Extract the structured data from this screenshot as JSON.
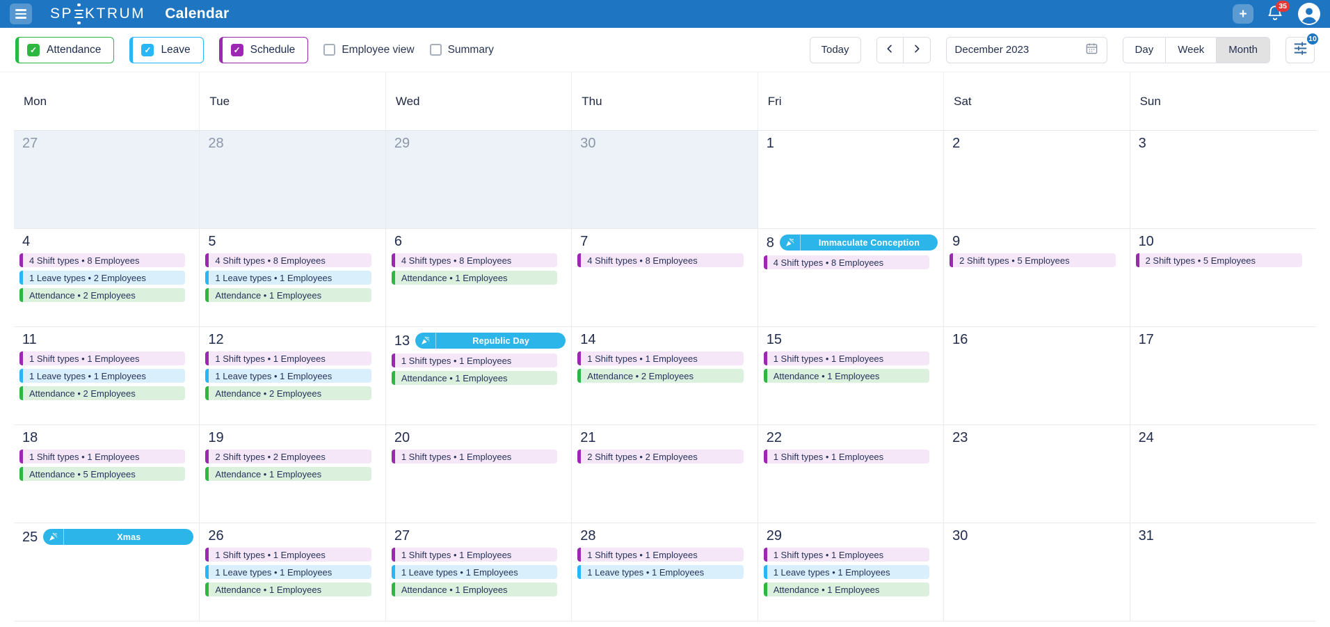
{
  "topbar": {
    "brand_prefix": "SP",
    "brand_suffix": "KTRUM",
    "title": "Calendar",
    "notification_count": "35"
  },
  "toolbar": {
    "filters": [
      {
        "label": "Attendance",
        "type": "attendance",
        "checked": true
      },
      {
        "label": "Leave",
        "type": "leave",
        "checked": true
      },
      {
        "label": "Schedule",
        "type": "schedule",
        "checked": true
      }
    ],
    "employee_view_label": "Employee view",
    "employee_view_checked": false,
    "summary_label": "Summary",
    "summary_checked": false,
    "today_label": "Today",
    "period": "December 2023",
    "views": [
      "Day",
      "Week",
      "Month"
    ],
    "active_view": "Month",
    "filter_badge": "10"
  },
  "colors": {
    "topbar_blue": "#1e75c1",
    "attendance_green": "#2db742",
    "leave_blue": "#29b6f6",
    "schedule_purple": "#9c27b0",
    "holiday_cyan": "#2cb5e8",
    "notification_red": "#e53935"
  },
  "calendar": {
    "weekdays": [
      "Mon",
      "Tue",
      "Wed",
      "Thu",
      "Fri",
      "Sat",
      "Sun"
    ],
    "weeks": [
      [
        {
          "day": "27",
          "other": true,
          "events": []
        },
        {
          "day": "28",
          "other": true,
          "events": []
        },
        {
          "day": "29",
          "other": true,
          "events": []
        },
        {
          "day": "30",
          "other": true,
          "events": []
        },
        {
          "day": "1",
          "events": []
        },
        {
          "day": "2",
          "events": []
        },
        {
          "day": "3",
          "events": []
        }
      ],
      [
        {
          "day": "4",
          "events": [
            {
              "type": "shift",
              "label": "4 Shift types • 8 Employees"
            },
            {
              "type": "leave",
              "label": "1 Leave types • 2 Employees"
            },
            {
              "type": "attendance",
              "label": "Attendance • 2 Employees"
            }
          ]
        },
        {
          "day": "5",
          "events": [
            {
              "type": "shift",
              "label": "4 Shift types • 8 Employees"
            },
            {
              "type": "leave",
              "label": "1 Leave types • 1 Employees"
            },
            {
              "type": "attendance",
              "label": "Attendance • 1 Employees"
            }
          ]
        },
        {
          "day": "6",
          "events": [
            {
              "type": "shift",
              "label": "4 Shift types • 8 Employees"
            },
            {
              "type": "attendance",
              "label": "Attendance • 1 Employees"
            }
          ]
        },
        {
          "day": "7",
          "events": [
            {
              "type": "shift",
              "label": "4 Shift types • 8 Employees"
            }
          ]
        },
        {
          "day": "8",
          "holiday": "Immaculate Conception",
          "events": [
            {
              "type": "shift",
              "label": "4 Shift types • 8 Employees"
            }
          ]
        },
        {
          "day": "9",
          "events": [
            {
              "type": "shift",
              "label": "2 Shift types • 5 Employees"
            }
          ]
        },
        {
          "day": "10",
          "events": [
            {
              "type": "shift",
              "label": "2 Shift types • 5 Employees"
            }
          ]
        }
      ],
      [
        {
          "day": "11",
          "events": [
            {
              "type": "shift",
              "label": "1 Shift types • 1 Employees"
            },
            {
              "type": "leave",
              "label": "1 Leave types • 1 Employees"
            },
            {
              "type": "attendance",
              "label": "Attendance • 2 Employees"
            }
          ]
        },
        {
          "day": "12",
          "events": [
            {
              "type": "shift",
              "label": "1 Shift types • 1 Employees"
            },
            {
              "type": "leave",
              "label": "1 Leave types • 1 Employees"
            },
            {
              "type": "attendance",
              "label": "Attendance • 2 Employees"
            }
          ]
        },
        {
          "day": "13",
          "holiday": "Republic Day",
          "events": [
            {
              "type": "shift",
              "label": "1 Shift types • 1 Employees"
            },
            {
              "type": "attendance",
              "label": "Attendance • 1 Employees"
            }
          ]
        },
        {
          "day": "14",
          "events": [
            {
              "type": "shift",
              "label": "1 Shift types • 1 Employees"
            },
            {
              "type": "attendance",
              "label": "Attendance • 2 Employees"
            }
          ]
        },
        {
          "day": "15",
          "events": [
            {
              "type": "shift",
              "label": "1 Shift types • 1 Employees"
            },
            {
              "type": "attendance",
              "label": "Attendance • 1 Employees"
            }
          ]
        },
        {
          "day": "16",
          "events": []
        },
        {
          "day": "17",
          "events": []
        }
      ],
      [
        {
          "day": "18",
          "events": [
            {
              "type": "shift",
              "label": "1 Shift types • 1 Employees"
            },
            {
              "type": "attendance",
              "label": "Attendance • 5 Employees"
            }
          ]
        },
        {
          "day": "19",
          "events": [
            {
              "type": "shift",
              "label": "2 Shift types • 2 Employees"
            },
            {
              "type": "attendance",
              "label": "Attendance • 1 Employees"
            }
          ]
        },
        {
          "day": "20",
          "events": [
            {
              "type": "shift",
              "label": "1 Shift types • 1 Employees"
            }
          ]
        },
        {
          "day": "21",
          "events": [
            {
              "type": "shift",
              "label": "2 Shift types • 2 Employees"
            }
          ]
        },
        {
          "day": "22",
          "events": [
            {
              "type": "shift",
              "label": "1 Shift types • 1 Employees"
            }
          ]
        },
        {
          "day": "23",
          "events": []
        },
        {
          "day": "24",
          "events": []
        }
      ],
      [
        {
          "day": "25",
          "holiday": "Xmas",
          "events": []
        },
        {
          "day": "26",
          "events": [
            {
              "type": "shift",
              "label": "1 Shift types • 1 Employees"
            },
            {
              "type": "leave",
              "label": "1 Leave types • 1 Employees"
            },
            {
              "type": "attendance",
              "label": "Attendance • 1 Employees"
            }
          ]
        },
        {
          "day": "27",
          "events": [
            {
              "type": "shift",
              "label": "1 Shift types • 1 Employees"
            },
            {
              "type": "leave",
              "label": "1 Leave types • 1 Employees"
            },
            {
              "type": "attendance",
              "label": "Attendance • 1 Employees"
            }
          ]
        },
        {
          "day": "28",
          "events": [
            {
              "type": "shift",
              "label": "1 Shift types • 1 Employees"
            },
            {
              "type": "leave",
              "label": "1 Leave types • 1 Employees"
            }
          ]
        },
        {
          "day": "29",
          "events": [
            {
              "type": "shift",
              "label": "1 Shift types • 1 Employees"
            },
            {
              "type": "leave",
              "label": "1 Leave types • 1 Employees"
            },
            {
              "type": "attendance",
              "label": "Attendance • 1 Employees"
            }
          ]
        },
        {
          "day": "30",
          "events": []
        },
        {
          "day": "31",
          "events": []
        }
      ]
    ]
  }
}
